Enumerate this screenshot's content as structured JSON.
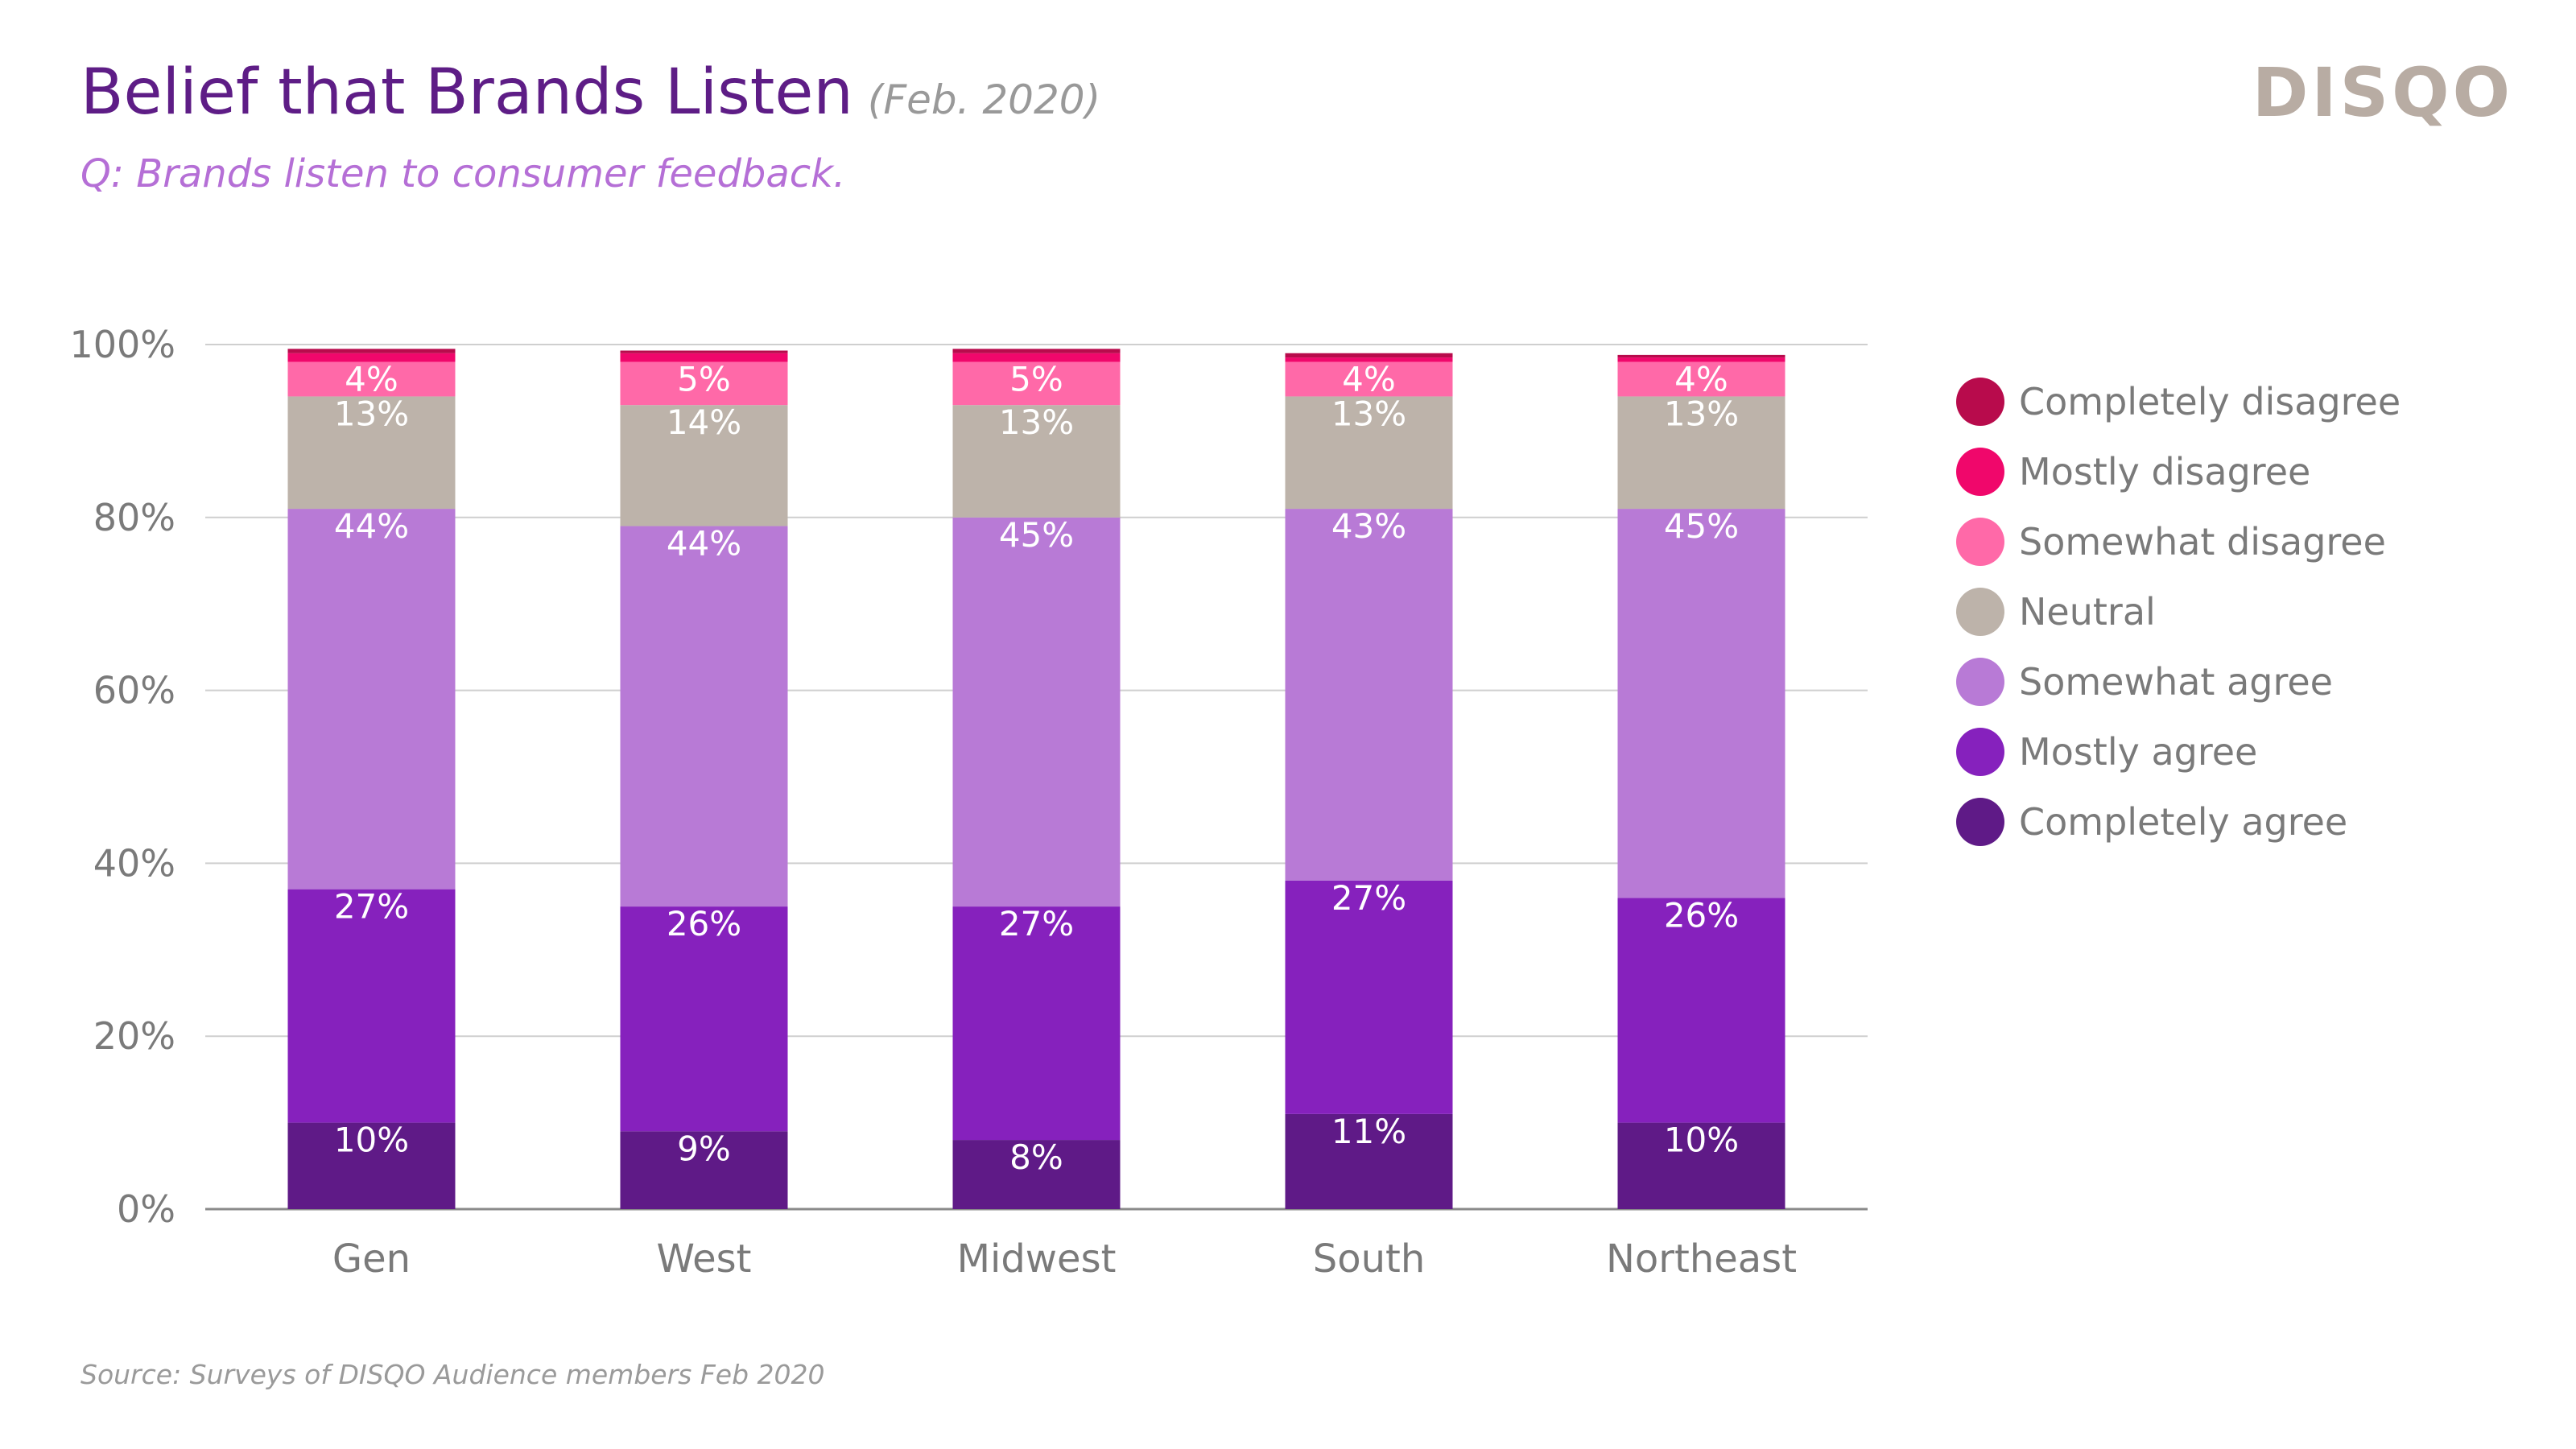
{
  "header": {
    "title": "Belief that Brands Listen",
    "date": "(Feb. 2020)",
    "subtitle": "Q: Brands listen to consumer feedback.",
    "logo": "DISQO"
  },
  "footer": {
    "source": "Source: Surveys of DISQO Audience members Feb 2020"
  },
  "chart_data": {
    "type": "bar",
    "stacked": true,
    "categories": [
      "Gen",
      "West",
      "Midwest",
      "South",
      "Northeast"
    ],
    "ylim": [
      0,
      100
    ],
    "yticks": [
      "0%",
      "20%",
      "40%",
      "60%",
      "80%",
      "100%"
    ],
    "grid": true,
    "legend_position": "right",
    "series": [
      {
        "name": "Completely agree",
        "color": "#5f1a87",
        "values": [
          10,
          9,
          8,
          11,
          10
        ],
        "labels": [
          "10%",
          "9%",
          "8%",
          "11%",
          "10%"
        ]
      },
      {
        "name": "Mostly agree",
        "color": "#8621bd",
        "values": [
          27,
          26,
          27,
          27,
          26
        ],
        "labels": [
          "27%",
          "26%",
          "27%",
          "27%",
          "26%"
        ]
      },
      {
        "name": "Somewhat agree",
        "color": "#b87ad6",
        "values": [
          44,
          44,
          45,
          43,
          45
        ],
        "labels": [
          "44%",
          "44%",
          "45%",
          "43%",
          "45%"
        ]
      },
      {
        "name": "Neutral",
        "color": "#bdb3aa",
        "values": [
          13,
          14,
          13,
          13,
          13
        ],
        "labels": [
          "13%",
          "14%",
          "13%",
          "13%",
          "13%"
        ]
      },
      {
        "name": "Somewhat disagree",
        "color": "#ff69a8",
        "values": [
          4,
          5,
          5,
          4,
          4
        ],
        "labels": [
          "4%",
          "5%",
          "5%",
          "4%",
          "4%"
        ]
      },
      {
        "name": "Mostly disagree",
        "color": "#f0076b",
        "values": [
          1,
          1,
          1,
          0.5,
          0.5
        ],
        "labels": [
          "",
          "",
          "",
          "",
          ""
        ]
      },
      {
        "name": "Completely disagree",
        "color": "#b80b4c",
        "values": [
          0.5,
          0.3,
          0.5,
          0.5,
          0.3
        ],
        "labels": [
          "",
          "",
          "",
          "",
          ""
        ]
      }
    ]
  }
}
